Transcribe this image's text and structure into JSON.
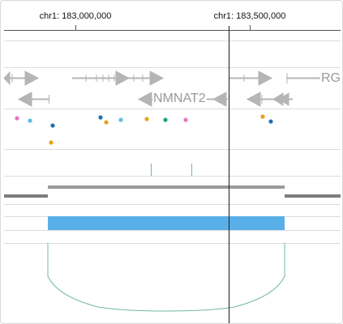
{
  "axis": {
    "ticks": [
      {
        "label": "chr1: 183,000,000",
        "position_bp": 183000000
      },
      {
        "label": "chr1: 183,500,000",
        "position_bp": 183500000
      }
    ]
  },
  "genes": {
    "labels": [
      "NMNAT2",
      "RG"
    ],
    "color": "#9a9a9a"
  },
  "dots": {
    "colors": [
      "#e377c2",
      "#5bbde4",
      "#1f6fb4",
      "#e6a21b",
      "#17a087"
    ]
  },
  "bar_track": {
    "color": "#58aee6"
  },
  "arc_track": {
    "color": "#6fb8a4"
  },
  "cursor": {
    "color": "#1a1a1a"
  }
}
